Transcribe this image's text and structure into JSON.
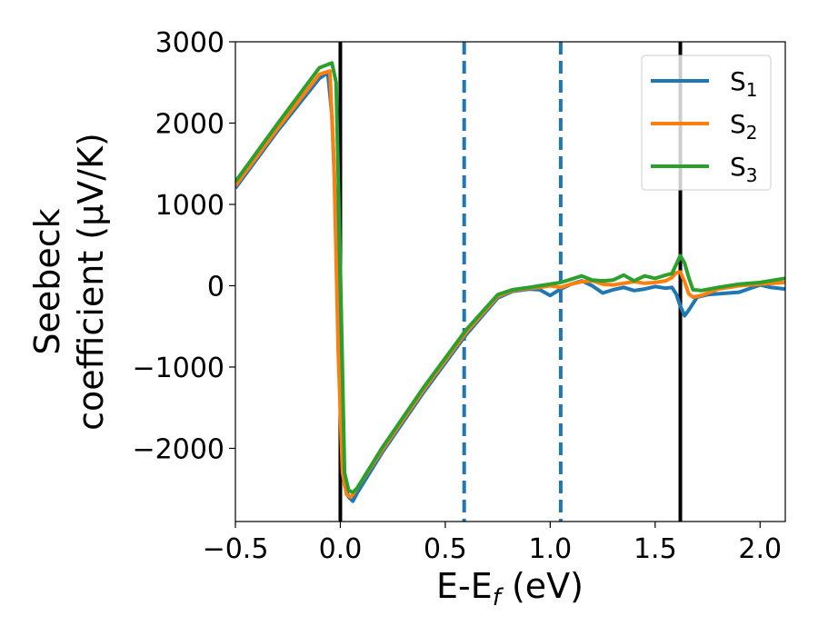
{
  "chart_data": {
    "type": "line",
    "xlabel_main": "E-E",
    "xlabel_sub": "f",
    "xlabel_unit": " (eV)",
    "ylabel_line1": "Seebeck",
    "ylabel_line2": "coefficient  (μV/K)",
    "xlim": [
      -0.5,
      2.12
    ],
    "ylim": [
      -2900,
      3000
    ],
    "xticks": [
      -0.5,
      0.0,
      0.5,
      1.0,
      1.5,
      2.0
    ],
    "xtick_labels": [
      "−0.5",
      "0.0",
      "0.5",
      "1.0",
      "1.5",
      "2.0"
    ],
    "yticks": [
      3000,
      2000,
      1000,
      0,
      -1000,
      -2000
    ],
    "ytick_labels": [
      "3000",
      "2000",
      "1000",
      "0",
      "−1000",
      "−2000"
    ],
    "vlines_solid": [
      0.0,
      1.62
    ],
    "vlines_dashed": [
      0.59,
      1.05
    ],
    "legend_position": "top-right",
    "series": [
      {
        "name": "S",
        "sub": "1",
        "color": "#1f77b4",
        "x": [
          -0.5,
          -0.3,
          -0.1,
          -0.06,
          -0.04,
          -0.02,
          0.0,
          0.02,
          0.04,
          0.06,
          0.08,
          0.2,
          0.4,
          0.6,
          0.75,
          0.82,
          0.9,
          0.95,
          1.0,
          1.05,
          1.1,
          1.15,
          1.2,
          1.25,
          1.3,
          1.35,
          1.4,
          1.45,
          1.5,
          1.55,
          1.58,
          1.6,
          1.62,
          1.64,
          1.66,
          1.7,
          1.75,
          1.8,
          1.9,
          2.0,
          2.05,
          2.12
        ],
        "y": [
          1200,
          1900,
          2550,
          2620,
          2100,
          800,
          -1500,
          -2450,
          -2600,
          -2650,
          -2550,
          -2050,
          -1300,
          -600,
          -150,
          -70,
          -40,
          -50,
          -120,
          -40,
          20,
          60,
          0,
          -90,
          -50,
          -20,
          -60,
          -40,
          -10,
          -30,
          -20,
          -100,
          -250,
          -370,
          -300,
          -140,
          -110,
          -100,
          -80,
          10,
          -20,
          -40
        ]
      },
      {
        "name": "S",
        "sub": "2",
        "color": "#ff7f0e",
        "x": [
          -0.5,
          -0.3,
          -0.1,
          -0.05,
          -0.03,
          -0.01,
          0.01,
          0.03,
          0.05,
          0.07,
          0.2,
          0.4,
          0.6,
          0.75,
          0.82,
          0.9,
          0.95,
          1.0,
          1.05,
          1.1,
          1.15,
          1.2,
          1.25,
          1.3,
          1.35,
          1.4,
          1.45,
          1.5,
          1.55,
          1.58,
          1.6,
          1.62,
          1.64,
          1.66,
          1.68,
          1.72,
          1.8,
          1.9,
          2.0,
          2.12
        ],
        "y": [
          1230,
          1930,
          2600,
          2640,
          1500,
          -800,
          -2300,
          -2570,
          -2600,
          -2530,
          -2020,
          -1270,
          -570,
          -130,
          -60,
          -30,
          -20,
          0,
          -20,
          20,
          50,
          60,
          20,
          10,
          30,
          50,
          30,
          40,
          60,
          100,
          160,
          170,
          50,
          -100,
          -140,
          -120,
          -40,
          0,
          20,
          40
        ]
      },
      {
        "name": "S",
        "sub": "3",
        "color": "#2ca02c",
        "x": [
          -0.5,
          -0.3,
          -0.1,
          -0.04,
          -0.02,
          0.0,
          0.02,
          0.04,
          0.06,
          0.08,
          0.2,
          0.4,
          0.6,
          0.75,
          0.82,
          0.9,
          0.95,
          1.0,
          1.05,
          1.1,
          1.15,
          1.2,
          1.25,
          1.3,
          1.35,
          1.4,
          1.45,
          1.5,
          1.55,
          1.58,
          1.6,
          1.62,
          1.64,
          1.66,
          1.68,
          1.72,
          1.8,
          1.9,
          2.0,
          2.12
        ],
        "y": [
          1280,
          1990,
          2680,
          2740,
          2500,
          200,
          -2300,
          -2520,
          -2540,
          -2490,
          -1990,
          -1240,
          -540,
          -110,
          -50,
          -20,
          0,
          20,
          40,
          80,
          120,
          70,
          60,
          70,
          130,
          60,
          120,
          90,
          130,
          150,
          260,
          370,
          280,
          100,
          -50,
          -60,
          -20,
          20,
          40,
          90
        ]
      }
    ]
  }
}
